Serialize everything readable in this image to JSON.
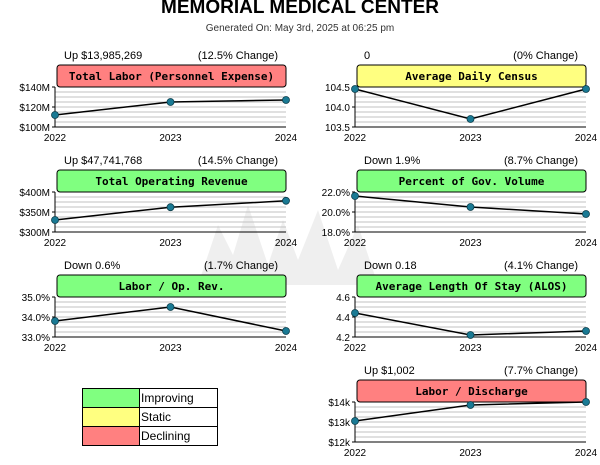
{
  "header": {
    "title": "MEMORIAL MEDICAL CENTER",
    "generated": "Generated On: May 3rd, 2025 at 06:25 pm"
  },
  "colors": {
    "improving": "#80ff80",
    "static": "#ffff80",
    "declining": "#ff8080",
    "line": "#000000",
    "marker": "#1a7a94",
    "grid": "#c0c0c0"
  },
  "legend": [
    {
      "label": "Improving",
      "status": "improving"
    },
    {
      "label": "Static",
      "status": "static"
    },
    {
      "label": "Declining",
      "status": "declining"
    }
  ],
  "chart_data": [
    {
      "type": "line",
      "title": "Total Labor (Personnel Expense)",
      "status": "declining",
      "stat_left": "Up $13,985,269",
      "stat_right": "(12.5% Change)",
      "categories": [
        "2022",
        "2023",
        "2024"
      ],
      "values": [
        112,
        125,
        127
      ],
      "ylim": [
        100,
        140
      ],
      "yticks": [
        100,
        120,
        140
      ],
      "ytick_labels": [
        "$100M",
        "$120M",
        "$140M"
      ]
    },
    {
      "type": "line",
      "title": "Average Daily Census",
      "status": "static",
      "stat_left": "0",
      "stat_right": "(0% Change)",
      "categories": [
        "2022",
        "2023",
        "2024"
      ],
      "values": [
        104.45,
        103.7,
        104.45
      ],
      "ylim": [
        103.5,
        104.5
      ],
      "yticks": [
        103.5,
        104.0,
        104.5
      ],
      "ytick_labels": [
        "103.5",
        "104.0",
        "104.5"
      ]
    },
    {
      "type": "line",
      "title": "Total Operating Revenue",
      "status": "improving",
      "stat_left": "Up $47,741,768",
      "stat_right": "(14.5% Change)",
      "categories": [
        "2022",
        "2023",
        "2024"
      ],
      "values": [
        330,
        362,
        378
      ],
      "ylim": [
        300,
        400
      ],
      "yticks": [
        300,
        350,
        400
      ],
      "ytick_labels": [
        "$300M",
        "$350M",
        "$400M"
      ]
    },
    {
      "type": "line",
      "title": "Percent of Gov. Volume",
      "status": "improving",
      "stat_left": "Down 1.9%",
      "stat_right": "(8.7% Change)",
      "categories": [
        "2022",
        "2023",
        "2024"
      ],
      "values": [
        21.6,
        20.5,
        19.8
      ],
      "ylim": [
        18,
        22
      ],
      "yticks": [
        18,
        20,
        22
      ],
      "ytick_labels": [
        "18.0%",
        "20.0%",
        "22.0%"
      ]
    },
    {
      "type": "line",
      "title": "Labor / Op. Rev.",
      "status": "improving",
      "stat_left": "Down 0.6%",
      "stat_right": "(1.7% Change)",
      "categories": [
        "2022",
        "2023",
        "2024"
      ],
      "values": [
        33.8,
        34.5,
        33.3
      ],
      "ylim": [
        33,
        35
      ],
      "yticks": [
        33,
        34,
        35
      ],
      "ytick_labels": [
        "33.0%",
        "34.0%",
        "35.0%"
      ]
    },
    {
      "type": "line",
      "title": "Average Length Of Stay (ALOS)",
      "status": "improving",
      "stat_left": "Down 0.18",
      "stat_right": "(4.1% Change)",
      "categories": [
        "2022",
        "2023",
        "2024"
      ],
      "values": [
        4.44,
        4.22,
        4.26
      ],
      "ylim": [
        4.2,
        4.6
      ],
      "yticks": [
        4.2,
        4.4,
        4.6
      ],
      "ytick_labels": [
        "4.2",
        "4.4",
        "4.6"
      ]
    },
    {
      "type": "line",
      "title": "Labor / Discharge",
      "status": "declining",
      "stat_left": "Up $1,002",
      "stat_right": "(7.7% Change)",
      "categories": [
        "2022",
        "2023",
        "2024"
      ],
      "values": [
        13.05,
        13.85,
        14.0
      ],
      "ylim": [
        12,
        14
      ],
      "yticks": [
        12,
        13,
        14
      ],
      "ytick_labels": [
        "$12k",
        "$13k",
        "$14k"
      ]
    }
  ]
}
